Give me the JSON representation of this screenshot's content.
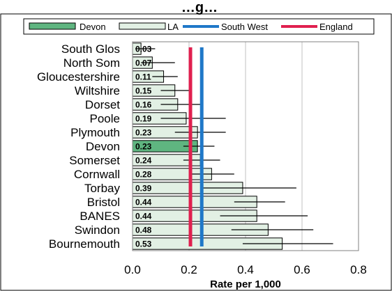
{
  "chart_data": {
    "type": "bar",
    "orientation": "horizontal",
    "title": "…g…",
    "xlabel": "Rate per 1,000",
    "xlim": [
      0,
      0.8
    ],
    "xticks": [
      "0.0",
      "0.2",
      "0.4",
      "0.6",
      "0.8"
    ],
    "xtick_values": [
      0,
      0.2,
      0.4,
      0.6,
      0.8
    ],
    "grid": "vertical",
    "legend_position": "top",
    "legend": [
      {
        "label": "Devon",
        "kind": "bar",
        "color": "#5fb580"
      },
      {
        "label": "LA",
        "kind": "bar",
        "color": "#e2f0e4"
      },
      {
        "label": "South West",
        "kind": "line",
        "color": "#1f78c8"
      },
      {
        "label": "England",
        "kind": "line",
        "color": "#e0204f"
      }
    ],
    "categories": [
      "South Glos",
      "North Som",
      "Gloucestershire",
      "Wiltshire",
      "Dorset",
      "Poole",
      "Plymouth",
      "Devon",
      "Somerset",
      "Cornwall",
      "Torbay",
      "Bristol",
      "BANES",
      "Swindon",
      "Bournemouth"
    ],
    "values": [
      0.03,
      0.07,
      0.11,
      0.15,
      0.16,
      0.19,
      0.23,
      0.23,
      0.24,
      0.28,
      0.39,
      0.44,
      0.44,
      0.48,
      0.53
    ],
    "labels": [
      "0.03",
      "0.07",
      "0.11",
      "0.15",
      "0.16",
      "0.19",
      "0.23",
      "0.23",
      "0.24",
      "0.28",
      "0.39",
      "0.44",
      "0.44",
      "0.48",
      "0.53"
    ],
    "ci_lower": [
      0.01,
      0.03,
      0.07,
      0.1,
      0.1,
      0.1,
      0.15,
      0.18,
      0.18,
      0.21,
      0.24,
      0.36,
      0.31,
      0.35,
      0.39
    ],
    "ci_upper": [
      0.08,
      0.15,
      0.16,
      0.21,
      0.24,
      0.33,
      0.33,
      0.29,
      0.31,
      0.36,
      0.58,
      0.54,
      0.62,
      0.64,
      0.71
    ],
    "highlight": "Devon",
    "reference_lines": [
      {
        "name": "England",
        "value": 0.205,
        "color": "#e0204f"
      },
      {
        "name": "South West",
        "value": 0.245,
        "color": "#1f78c8"
      }
    ]
  }
}
